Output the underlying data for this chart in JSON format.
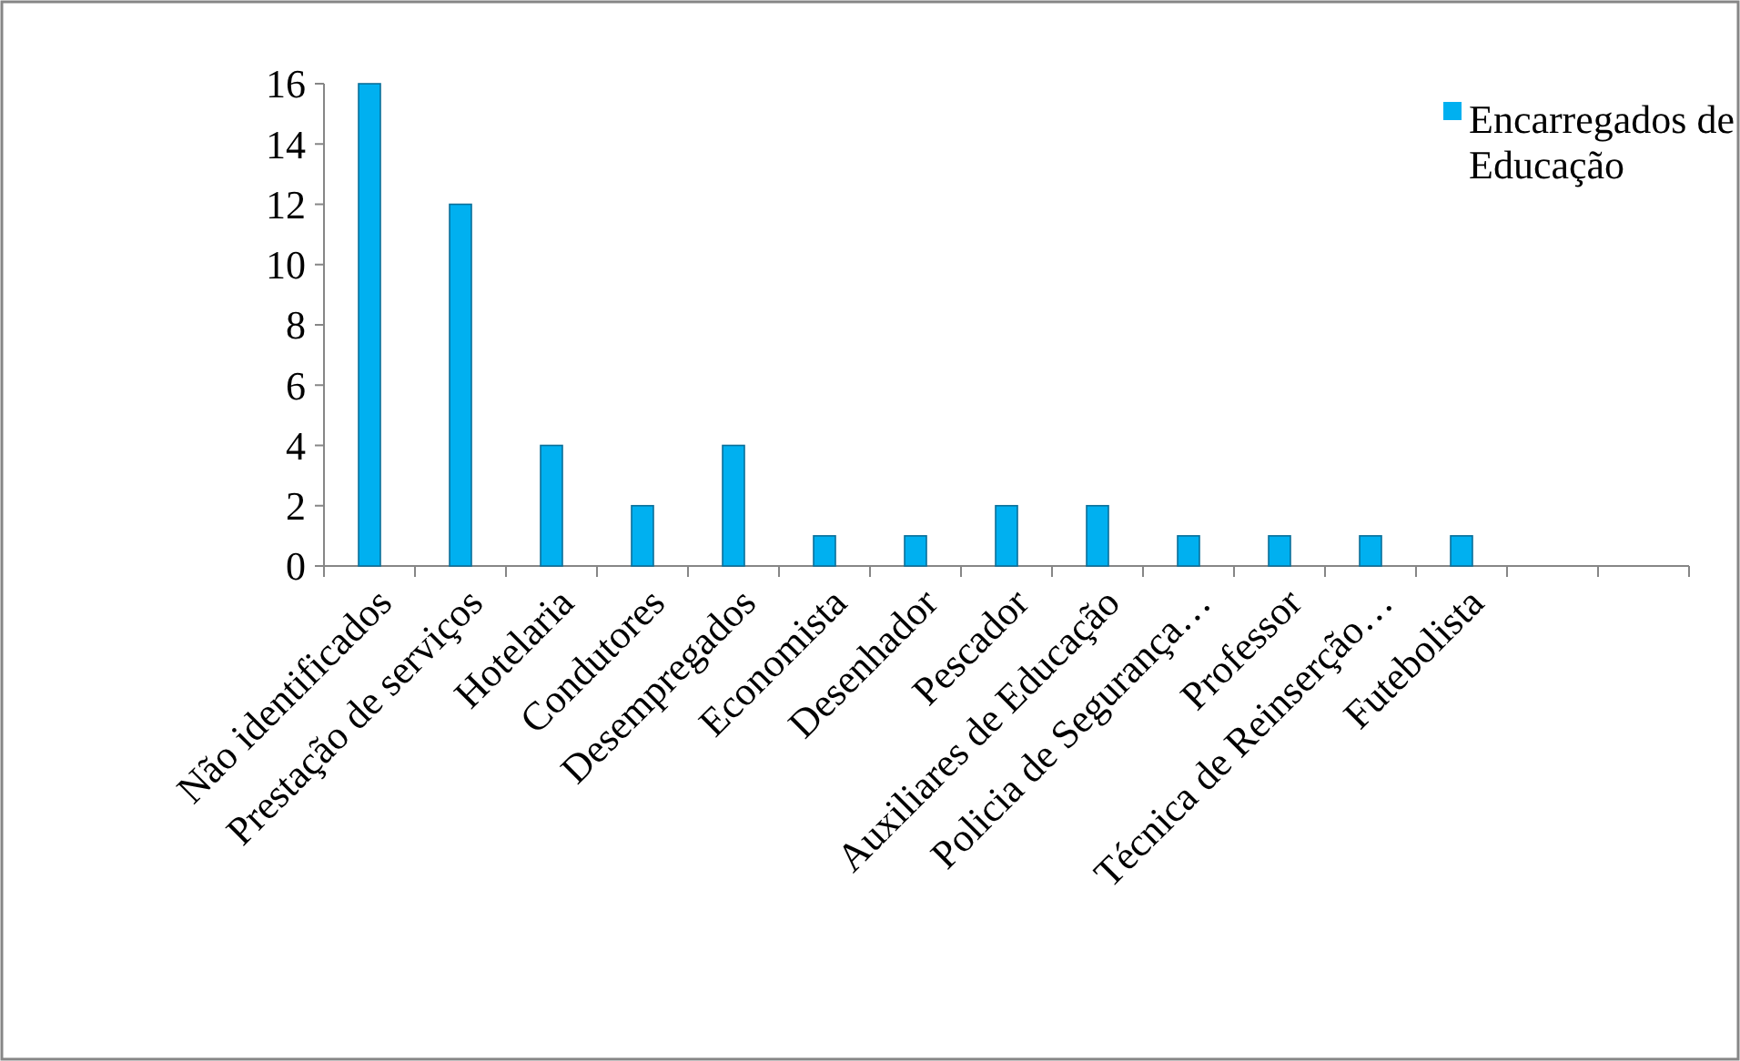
{
  "chart_data": {
    "type": "bar",
    "categories": [
      "Não identificados",
      "Prestação de serviços",
      "Hotelaria",
      "Condutores",
      "Desempregados",
      "Economista",
      "Desenhador",
      "Pescador",
      "Auxiliares de Educação",
      "Policia de Segurança…",
      "Professor",
      "Técnica de Reinserção…",
      "Futebolista",
      null,
      null
    ],
    "series": [
      {
        "name": "Encarregados de Educação",
        "color": "#00b0f0",
        "values": [
          16,
          12,
          4,
          2,
          4,
          1,
          1,
          2,
          2,
          1,
          1,
          1,
          1,
          null,
          null
        ]
      }
    ],
    "ylim": [
      0,
      16
    ],
    "yticks": [
      0,
      2,
      4,
      6,
      8,
      10,
      12,
      14,
      16
    ],
    "grid": false,
    "legend": "top right"
  }
}
